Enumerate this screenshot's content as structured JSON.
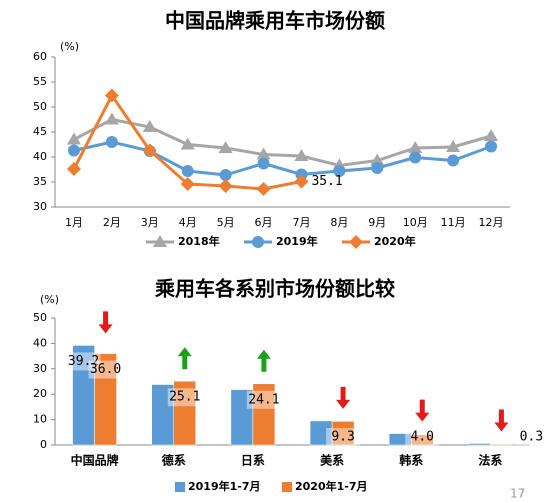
{
  "chart_data": [
    {
      "type": "line",
      "title": "中国品牌乘用车市场份额",
      "unit": "(%)",
      "categories": [
        "1月",
        "2月",
        "3月",
        "4月",
        "5月",
        "6月",
        "7月",
        "8月",
        "9月",
        "10月",
        "11月",
        "12月"
      ],
      "ylim": [
        30,
        60
      ],
      "yticks": [
        30,
        35,
        40,
        45,
        50,
        55,
        60
      ],
      "grid": false,
      "series": [
        {
          "name": "2018年",
          "color": "#a6a6a6",
          "marker": "triangle",
          "values": [
            43.5,
            47.5,
            46,
            42.5,
            41.8,
            40.5,
            40.2,
            38.3,
            39.3,
            41.8,
            42,
            44.2
          ]
        },
        {
          "name": "2019年",
          "color": "#5b9bd5",
          "marker": "circle",
          "values": [
            41.3,
            43,
            41.2,
            37.2,
            36.4,
            38.7,
            36.5,
            37.2,
            37.8,
            39.9,
            39.3,
            42.1
          ]
        },
        {
          "name": "2020年",
          "color": "#ed7d31",
          "marker": "diamond",
          "values": [
            37.6,
            52.3,
            41.3,
            34.6,
            34.2,
            33.6,
            35.1,
            null,
            null,
            null,
            null,
            null
          ],
          "value_labels": [
            null,
            null,
            null,
            null,
            null,
            null,
            "35.1",
            null,
            null,
            null,
            null,
            null
          ]
        }
      ]
    },
    {
      "type": "bar",
      "title": "乘用车各系别市场份额比较",
      "unit": "(%)",
      "categories": [
        "中国品牌",
        "德系",
        "日系",
        "美系",
        "韩系",
        "法系"
      ],
      "ylim": [
        0,
        50
      ],
      "yticks": [
        0,
        10,
        20,
        30,
        40,
        50
      ],
      "grid": false,
      "series": [
        {
          "name": "2019年1-7月",
          "color": "#5b9bd5",
          "values": [
            39.2,
            23.8,
            21.8,
            9.5,
            4.5,
            0.6
          ],
          "value_labels": [
            "39.2",
            null,
            null,
            null,
            null,
            null
          ]
        },
        {
          "name": "2020年1-7月",
          "color": "#ed7d31",
          "values": [
            36.0,
            25.1,
            24.1,
            9.3,
            4.0,
            0.3
          ],
          "value_labels": [
            "36.0",
            "25.1",
            "24.1",
            "9.3",
            "4.0",
            "0.3"
          ]
        }
      ]
    }
  ],
  "page_number": "17"
}
